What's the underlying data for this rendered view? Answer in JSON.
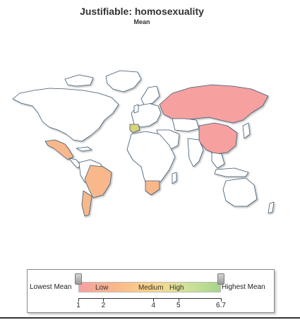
{
  "title": "Justifiable: homosexuality",
  "subtitle": "Mean",
  "legend": {
    "min_label": "Lowest Mean",
    "max_label": "Highest Mean",
    "bands": [
      "Low",
      "Medium",
      "High"
    ],
    "ticks": [
      "1",
      "2",
      "4",
      "5",
      "6.7"
    ],
    "tick_values": [
      1,
      2,
      4,
      5,
      6.7
    ],
    "range": [
      1,
      6.7
    ]
  },
  "colors": {
    "low": "#f6a0a0",
    "low_medium": "#f8b88c",
    "medium": "#fbd88a",
    "high": "#a6d48c",
    "no_data": "#ffffff",
    "border": "#3e5a72"
  },
  "regions": {
    "russia": "Low",
    "china": "Low",
    "mexico": "Low-Medium",
    "brazil": "Low-Medium",
    "argentina": "Low-Medium",
    "south_africa": "Low-Medium",
    "spain": "High"
  }
}
